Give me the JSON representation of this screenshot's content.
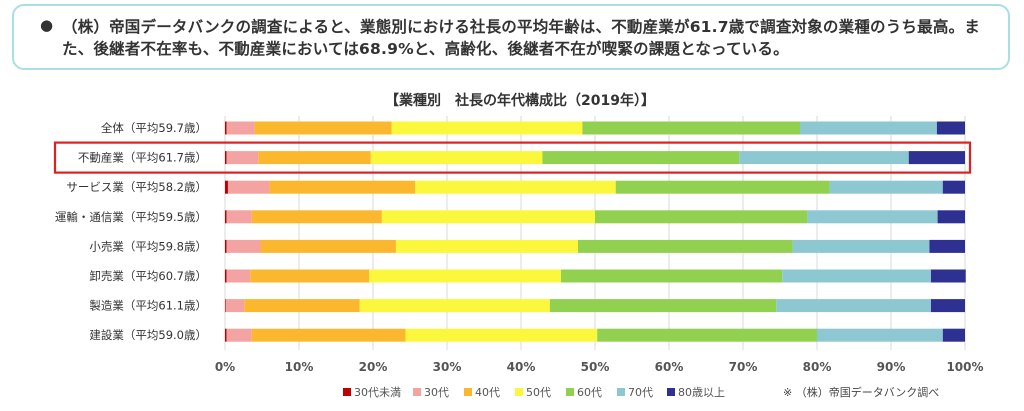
{
  "callout": {
    "bullet": "●",
    "text": "（株）帝国データバンクの調査によると、業態別における社長の平均年齢は、不動産業が61.7歳で調査対象の業種のうち最高。また、後継者不在率も、不動産業においては68.9%と、高齢化、後継者不在が喫緊の課題となっている。"
  },
  "source_note": "※ （株）帝国データバンク調べ",
  "colors": {
    "highlight": "#e02020",
    "under30": "#c00000",
    "s30": "#f4a3a3",
    "s40": "#fbb82f",
    "s50": "#fbf73c",
    "s60": "#92d050",
    "s70": "#8dc8d2",
    "s80": "#2e3192"
  },
  "chart_data": {
    "type": "bar",
    "orientation": "horizontal",
    "stacked": "percent",
    "title": "【業種別　社長の年代構成比（2019年）】",
    "categories": [
      "全体（平均59.7歳）",
      "不動産業（平均61.7歳）",
      "サービス業（平均58.2歳）",
      "運輸・通信業（平均59.5歳）",
      "小売業（平均59.8歳）",
      "卸売業（平均60.7歳）",
      "製造業（平均61.1歳）",
      "建設業（平均59.0歳）"
    ],
    "highlighted_category": "不動産業（平均61.7歳）",
    "series": [
      {
        "name": "30代未満",
        "values": [
          0.2,
          0.2,
          0.4,
          0.2,
          0.2,
          0.2,
          0.1,
          0.2
        ]
      },
      {
        "name": "30代",
        "values": [
          3.8,
          4.3,
          5.6,
          3.4,
          4.6,
          3.2,
          2.5,
          3.4
        ]
      },
      {
        "name": "40代",
        "values": [
          18.5,
          15.2,
          19.7,
          17.6,
          18.3,
          16.1,
          15.6,
          20.8
        ]
      },
      {
        "name": "50代",
        "values": [
          25.8,
          23.2,
          27.1,
          28.8,
          24.6,
          25.9,
          25.7,
          25.9
        ]
      },
      {
        "name": "60代",
        "values": [
          29.4,
          26.6,
          28.9,
          28.7,
          29.0,
          29.9,
          30.6,
          29.7
        ]
      },
      {
        "name": "70代",
        "values": [
          18.5,
          22.9,
          15.3,
          17.6,
          18.5,
          20.1,
          20.9,
          17.0
        ]
      },
      {
        "name": "80歳以上",
        "values": [
          3.8,
          7.6,
          3.0,
          3.7,
          4.8,
          4.7,
          4.6,
          3.0
        ]
      }
    ],
    "xticks": [
      "0%",
      "10%",
      "20%",
      "30%",
      "40%",
      "50%",
      "60%",
      "70%",
      "80%",
      "90%",
      "100%"
    ],
    "xlim": [
      0,
      100
    ],
    "grid": true,
    "legend_position": "bottom"
  }
}
